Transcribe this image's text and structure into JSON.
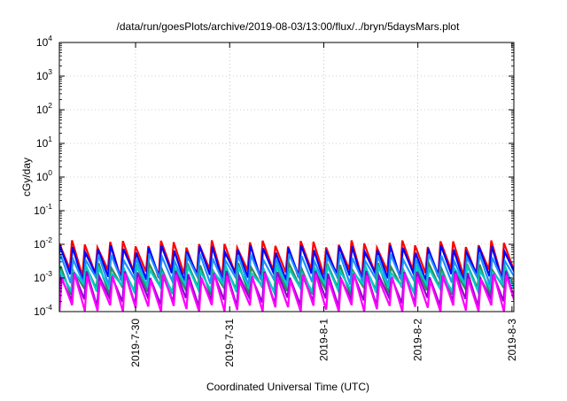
{
  "chart_data": {
    "type": "line",
    "title": "/data/run/goesPlots/archive/2019-08-03/13:00/flux/../bryn/5daysMars.plot",
    "xlabel": "Coordinated Universal Time (UTC)",
    "ylabel": "cGy/day",
    "y_scale": "log",
    "ylim": [
      0.0001,
      10000
    ],
    "y_ticks": [
      {
        "value": 0.0001,
        "base": "10",
        "exp": "-4"
      },
      {
        "value": 0.001,
        "base": "10",
        "exp": "-3"
      },
      {
        "value": 0.01,
        "base": "10",
        "exp": "-2"
      },
      {
        "value": 0.1,
        "base": "10",
        "exp": "-1"
      },
      {
        "value": 1,
        "base": "10",
        "exp": "0"
      },
      {
        "value": 10,
        "base": "10",
        "exp": "1"
      },
      {
        "value": 100,
        "base": "10",
        "exp": "2"
      },
      {
        "value": 1000,
        "base": "10",
        "exp": "3"
      },
      {
        "value": 10000,
        "base": "10",
        "exp": "4"
      }
    ],
    "x_range_days": [
      0,
      4.83
    ],
    "x_ticks": [
      {
        "label": "2019-7-30",
        "day": 0.81
      },
      {
        "label": "2019-7-31",
        "day": 1.81
      },
      {
        "label": "2019-8-1",
        "day": 2.81
      },
      {
        "label": "2019-8-2",
        "day": 3.81
      },
      {
        "label": "2019-8-3",
        "day": 4.81
      }
    ],
    "grid": true,
    "series_note": "periodic sawtooth dose-rate traces, ~36 cycles over the window",
    "series": [
      {
        "color": "#ff0000",
        "period_days": 0.135,
        "peak": 0.0105,
        "trough": 0.0014,
        "phase": 0.0
      },
      {
        "color": "#0000ff",
        "period_days": 0.135,
        "peak": 0.0075,
        "trough": 0.0011,
        "phase": 0.005
      },
      {
        "color": "#1e90ff",
        "period_days": 0.135,
        "peak": 0.0042,
        "trough": 0.0008,
        "phase": 0.01
      },
      {
        "color": "#2e8b57",
        "period_days": 0.135,
        "peak": 0.0022,
        "trough": 0.00045,
        "phase": 0.012
      },
      {
        "color": "#00cccc",
        "period_days": 0.135,
        "peak": 0.0018,
        "trough": 0.0005,
        "phase": 0.016
      },
      {
        "color": "#9400d3",
        "period_days": 0.135,
        "peak": 0.0013,
        "trough": 0.0002,
        "phase": 0.02
      },
      {
        "color": "#ff00ff",
        "period_days": 0.135,
        "peak": 0.0011,
        "trough": 0.00012,
        "phase": 0.025
      }
    ]
  }
}
